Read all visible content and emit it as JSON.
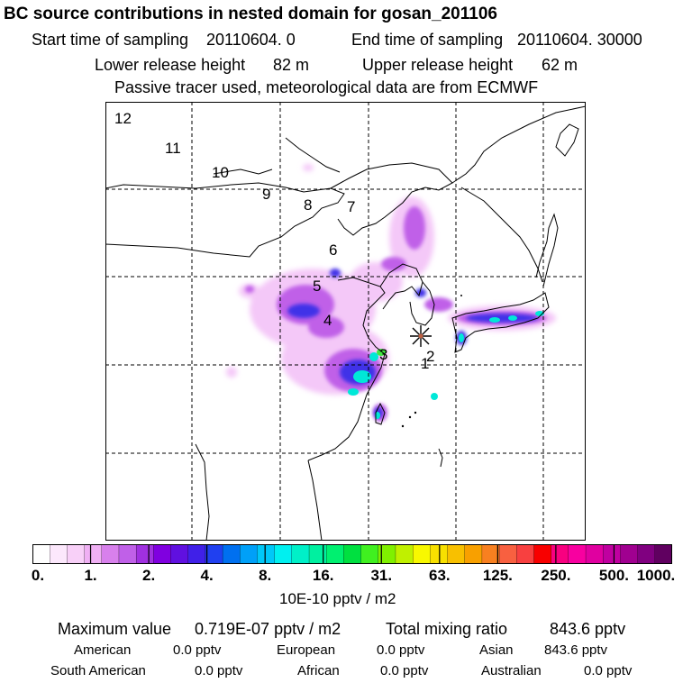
{
  "header": {
    "title": "BC  source contributions in nested domain for gosan_201106",
    "start_label": "Start time of sampling",
    "start_value": "20110604.    0",
    "end_label": "End time of sampling",
    "end_value": "20110604. 30000",
    "lower_label": "Lower release height",
    "lower_value": "82 m",
    "upper_label": "Upper release height",
    "upper_value": "62 m",
    "note": "Passive tracer used, meteorological data are from ECMWF"
  },
  "map": {
    "trajectory_labels": [
      {
        "text": "12"
      },
      {
        "text": "11"
      },
      {
        "text": "10"
      },
      {
        "text": "9"
      },
      {
        "text": "8"
      },
      {
        "text": "7"
      },
      {
        "text": "6"
      },
      {
        "text": "5"
      },
      {
        "text": "4"
      },
      {
        "text": "3"
      },
      {
        "text": "2"
      },
      {
        "text": "1"
      }
    ],
    "receptor_icon": "star-marker-icon"
  },
  "colorbar": {
    "ticks": [
      "0.",
      "1.",
      "2.",
      "4.",
      "8.",
      "16.",
      "31.",
      "63.",
      "125.",
      "250.",
      "500.",
      "1000."
    ],
    "colors": [
      "#ffffff",
      "#fce8fc",
      "#f8d0f8",
      "#f0b0f4",
      "#d880ec",
      "#c060e8",
      "#a030e0",
      "#8000e0",
      "#6010e0",
      "#4020e8",
      "#2040f0",
      "#0070f0",
      "#00a0f8",
      "#00c8f8",
      "#00f0f0",
      "#00f0c8",
      "#00f0a0",
      "#00f070",
      "#00e040",
      "#40f020",
      "#80f000",
      "#c0f000",
      "#f8f800",
      "#f8e000",
      "#f8c000",
      "#f8a000",
      "#f88020",
      "#f86040",
      "#f84040",
      "#f80000",
      "#f80080",
      "#f800a0",
      "#e000a0",
      "#c000a0",
      "#a00090",
      "#800080",
      "#600060"
    ],
    "units": "10E-10 pptv / m2"
  },
  "footer": {
    "max_label": "Maximum value",
    "max_value": "0.719E-07 pptv / m2",
    "total_label": "Total mixing ratio",
    "total_value": "843.6 pptv",
    "american_label": "American",
    "american_value": "0.0 pptv",
    "european_label": "European",
    "european_value": "0.0 pptv",
    "asian_label": "Asian",
    "asian_value": "843.6 pptv",
    "south_american_label": "South American",
    "south_american_value": "0.0 pptv",
    "african_label": "African",
    "african_value": "0.0 pptv",
    "australian_label": "Australian",
    "australian_value": "0.0 pptv"
  }
}
